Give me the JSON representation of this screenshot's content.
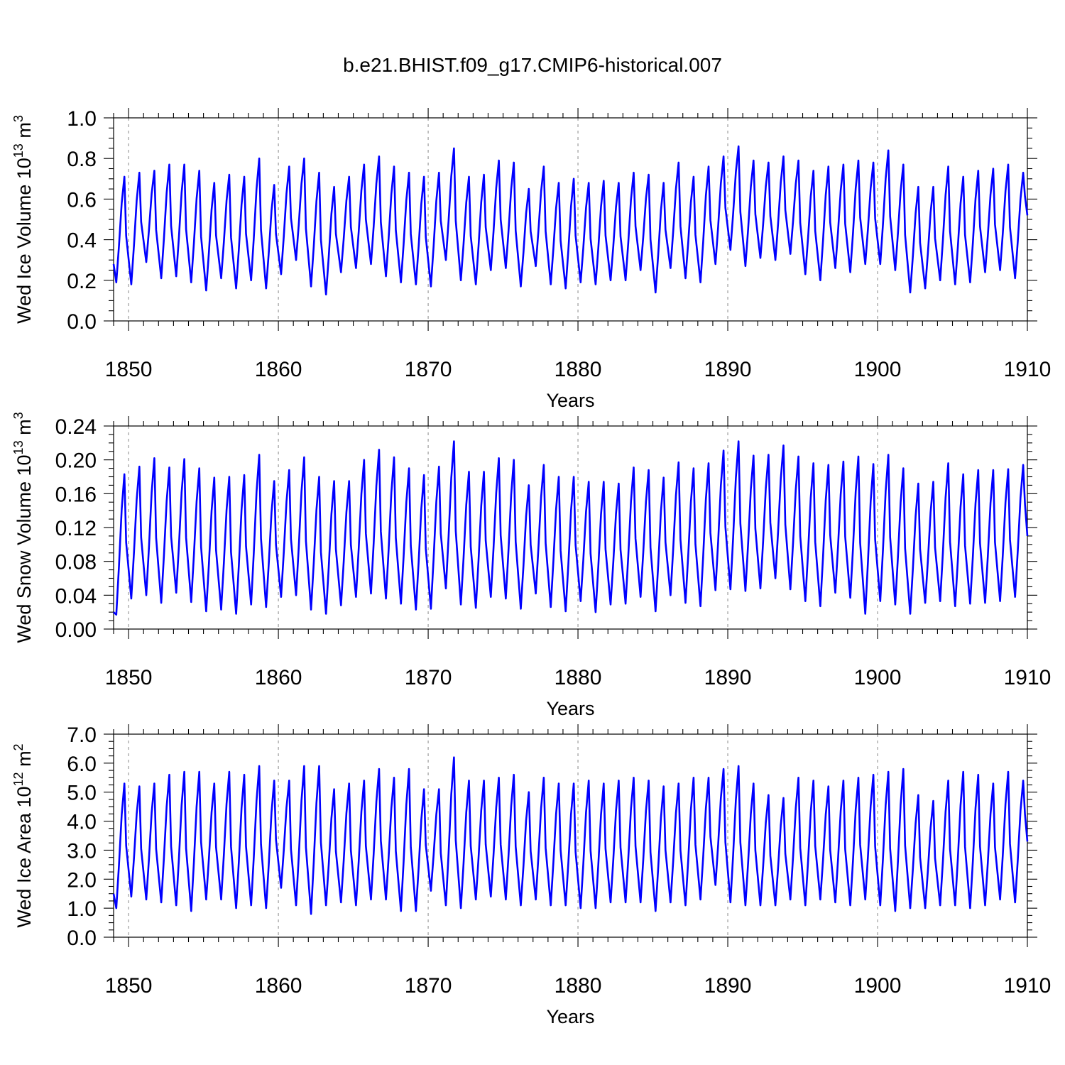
{
  "title": "b.e21.BHIST.f09_g17.CMIP6-historical.007",
  "chart_data": [
    {
      "type": "line",
      "title": "b.e21.BHIST.f09_g17.CMIP6-historical.007",
      "xlabel": "Years",
      "ylabel": "Wed Ice Volume 10",
      "ylabel_exp": "13",
      "ylabel_unit": " m",
      "ylabel_unit_exp": "3",
      "xlim": [
        1849,
        1910
      ],
      "ylim": [
        0.0,
        1.0
      ],
      "x_ticks": [
        1850,
        1860,
        1870,
        1880,
        1890,
        1900,
        1910
      ],
      "x_tick_labels": [
        "1850",
        "1860",
        "1870",
        "1880",
        "1890",
        "1900",
        "1910"
      ],
      "y_ticks": [
        0.0,
        0.2,
        0.4,
        0.6,
        0.8,
        1.0
      ],
      "y_tick_labels": [
        "0.0",
        "0.2",
        "0.4",
        "0.6",
        "0.8",
        "1.0"
      ],
      "grid": "vertical dashed at major x ticks",
      "color": "#0000ff",
      "start_value": 0.28,
      "end_value": 0.52,
      "series": [
        {
          "x_start": 1849,
          "step": "1 year (annual max / min of monthly cycle)",
          "annual_max": [
            0.71,
            0.73,
            0.74,
            0.77,
            0.77,
            0.74,
            0.68,
            0.72,
            0.71,
            0.8,
            0.67,
            0.76,
            0.8,
            0.73,
            0.66,
            0.71,
            0.77,
            0.81,
            0.76,
            0.73,
            0.71,
            0.73,
            0.85,
            0.71,
            0.72,
            0.79,
            0.78,
            0.65,
            0.76,
            0.68,
            0.7,
            0.68,
            0.69,
            0.68,
            0.73,
            0.72,
            0.68,
            0.78,
            0.71,
            0.76,
            0.81,
            0.86,
            0.79,
            0.78,
            0.81,
            0.79,
            0.74,
            0.76,
            0.77,
            0.79,
            0.78,
            0.84,
            0.77,
            0.66,
            0.66,
            0.76,
            0.71,
            0.74,
            0.75,
            0.77,
            0.73
          ],
          "annual_min": [
            0.19,
            0.18,
            0.29,
            0.21,
            0.22,
            0.19,
            0.15,
            0.21,
            0.16,
            0.2,
            0.16,
            0.23,
            0.3,
            0.17,
            0.13,
            0.24,
            0.26,
            0.28,
            0.22,
            0.19,
            0.18,
            0.17,
            0.3,
            0.2,
            0.18,
            0.25,
            0.26,
            0.17,
            0.27,
            0.18,
            0.16,
            0.19,
            0.18,
            0.2,
            0.2,
            0.25,
            0.14,
            0.26,
            0.21,
            0.19,
            0.28,
            0.35,
            0.27,
            0.31,
            0.3,
            0.33,
            0.23,
            0.2,
            0.26,
            0.24,
            0.28,
            0.28,
            0.25,
            0.14,
            0.16,
            0.2,
            0.18,
            0.19,
            0.24,
            0.25,
            0.21
          ]
        }
      ]
    },
    {
      "type": "line",
      "xlabel": "Years",
      "ylabel": "Wed Snow Volume 10",
      "ylabel_exp": "13",
      "ylabel_unit": " m",
      "ylabel_unit_exp": "3",
      "xlim": [
        1849,
        1910
      ],
      "ylim": [
        0.0,
        0.24
      ],
      "x_ticks": [
        1850,
        1860,
        1870,
        1880,
        1890,
        1900,
        1910
      ],
      "x_tick_labels": [
        "1850",
        "1860",
        "1870",
        "1880",
        "1890",
        "1900",
        "1910"
      ],
      "y_ticks": [
        0.0,
        0.04,
        0.08,
        0.12,
        0.16,
        0.2,
        0.24
      ],
      "y_tick_labels": [
        "0.00",
        "0.04",
        "0.08",
        "0.12",
        "0.16",
        "0.20",
        "0.24"
      ],
      "grid": "vertical dashed at major x ticks",
      "color": "#0000ff",
      "start_value": 0.02,
      "end_value": 0.11,
      "series": [
        {
          "x_start": 1849,
          "step": "1 year (annual max / min of monthly cycle)",
          "annual_max": [
            0.183,
            0.192,
            0.202,
            0.191,
            0.201,
            0.19,
            0.179,
            0.18,
            0.182,
            0.206,
            0.175,
            0.188,
            0.203,
            0.18,
            0.175,
            0.175,
            0.2,
            0.212,
            0.203,
            0.19,
            0.182,
            0.192,
            0.222,
            0.186,
            0.186,
            0.202,
            0.2,
            0.17,
            0.194,
            0.18,
            0.18,
            0.174,
            0.174,
            0.172,
            0.191,
            0.188,
            0.179,
            0.197,
            0.19,
            0.196,
            0.211,
            0.222,
            0.205,
            0.206,
            0.217,
            0.204,
            0.196,
            0.194,
            0.198,
            0.204,
            0.195,
            0.206,
            0.19,
            0.172,
            0.174,
            0.196,
            0.183,
            0.188,
            0.188,
            0.189,
            0.194
          ],
          "annual_min": [
            0.017,
            0.036,
            0.04,
            0.031,
            0.043,
            0.032,
            0.021,
            0.023,
            0.018,
            0.029,
            0.026,
            0.038,
            0.04,
            0.023,
            0.018,
            0.028,
            0.038,
            0.042,
            0.036,
            0.03,
            0.023,
            0.024,
            0.048,
            0.029,
            0.025,
            0.038,
            0.036,
            0.024,
            0.042,
            0.026,
            0.021,
            0.033,
            0.02,
            0.029,
            0.03,
            0.038,
            0.021,
            0.04,
            0.031,
            0.027,
            0.046,
            0.047,
            0.045,
            0.048,
            0.06,
            0.047,
            0.033,
            0.027,
            0.043,
            0.037,
            0.018,
            0.033,
            0.029,
            0.018,
            0.031,
            0.033,
            0.027,
            0.03,
            0.031,
            0.033,
            0.038
          ]
        }
      ]
    },
    {
      "type": "line",
      "xlabel": "Years",
      "ylabel": "Wed Ice Area 10",
      "ylabel_exp": "12",
      "ylabel_unit": " m",
      "ylabel_unit_exp": "2",
      "xlim": [
        1849,
        1910
      ],
      "ylim": [
        0.0,
        7.0
      ],
      "x_ticks": [
        1850,
        1860,
        1870,
        1880,
        1890,
        1900,
        1910
      ],
      "x_tick_labels": [
        "1850",
        "1860",
        "1870",
        "1880",
        "1890",
        "1900",
        "1910"
      ],
      "y_ticks": [
        0.0,
        1.0,
        2.0,
        3.0,
        4.0,
        5.0,
        6.0,
        7.0
      ],
      "y_tick_labels": [
        "0.0",
        "1.0",
        "2.0",
        "3.0",
        "4.0",
        "5.0",
        "6.0",
        "7.0"
      ],
      "grid": "vertical dashed at major x ticks",
      "color": "#0000ff",
      "start_value": 1.5,
      "end_value": 3.3,
      "series": [
        {
          "x_start": 1849,
          "step": "1 year (annual max / min of monthly cycle)",
          "annual_max": [
            5.3,
            5.2,
            5.3,
            5.6,
            5.7,
            5.7,
            5.3,
            5.7,
            5.6,
            5.9,
            5.4,
            5.4,
            5.9,
            5.9,
            5.1,
            5.3,
            5.4,
            5.8,
            5.5,
            5.8,
            5.1,
            5.1,
            6.2,
            5.4,
            5.4,
            5.5,
            5.6,
            5.0,
            5.5,
            5.3,
            5.3,
            5.4,
            5.3,
            5.4,
            5.5,
            5.4,
            5.2,
            5.3,
            5.5,
            5.5,
            5.8,
            5.9,
            5.3,
            4.9,
            4.8,
            5.5,
            5.4,
            5.2,
            5.4,
            5.5,
            5.6,
            5.7,
            5.8,
            4.9,
            4.7,
            5.4,
            5.7,
            5.6,
            5.3,
            5.7,
            5.4
          ],
          "annual_min": [
            1.0,
            1.4,
            1.3,
            1.2,
            1.1,
            0.9,
            1.3,
            1.3,
            1.0,
            1.1,
            1.0,
            1.7,
            1.1,
            0.8,
            1.1,
            1.2,
            1.1,
            1.3,
            1.3,
            0.9,
            0.9,
            1.6,
            1.1,
            1.0,
            1.3,
            1.4,
            1.3,
            1.1,
            1.3,
            1.1,
            1.1,
            1.0,
            1.0,
            1.2,
            1.2,
            1.2,
            0.9,
            1.2,
            1.1,
            1.3,
            1.8,
            1.2,
            1.1,
            1.1,
            1.1,
            1.3,
            1.1,
            1.3,
            1.2,
            1.1,
            1.3,
            1.1,
            0.9,
            1.0,
            1.0,
            1.1,
            1.1,
            1.0,
            1.1,
            1.3,
            1.2
          ]
        }
      ]
    }
  ]
}
